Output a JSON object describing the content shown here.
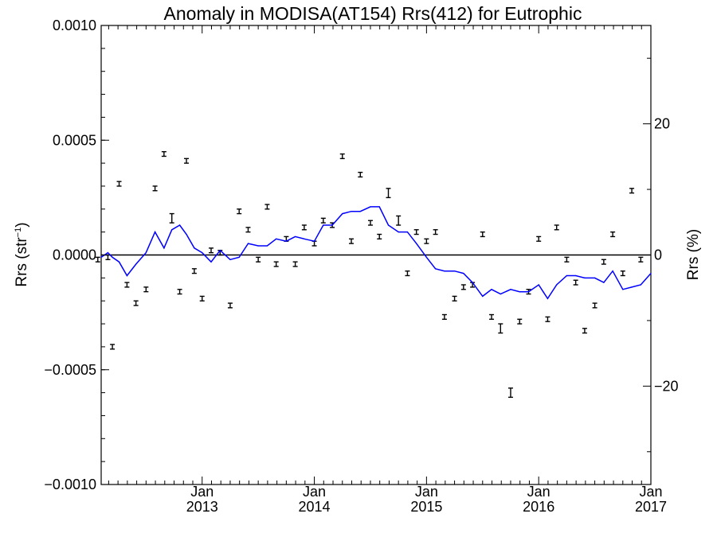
{
  "chart_data": {
    "type": "line",
    "title": "Anomaly in MODISA(AT154) Rrs(412) for Eutrophic",
    "ylabel_left": "Rrs (str",
    "ylabel_left_sup": "−1",
    "ylabel_left_close": ")",
    "ylabel_right": "Rrs (%)",
    "xlim": [
      2012.1,
      2017.0
    ],
    "ylim_left": [
      -0.001,
      0.001
    ],
    "ylim_right": [
      -35,
      35
    ],
    "y_ticks_left": [
      {
        "value": 0.001,
        "label": "0.0010"
      },
      {
        "value": 0.0005,
        "label": "0.0005"
      },
      {
        "value": 0.0,
        "label": "0.0000"
      },
      {
        "value": -0.0005,
        "label": "−0.0005"
      },
      {
        "value": -0.001,
        "label": "−0.0010"
      }
    ],
    "y_ticks_right": [
      {
        "value": 20,
        "label": "20"
      },
      {
        "value": 0,
        "label": "0"
      },
      {
        "value": -20,
        "label": "−20"
      }
    ],
    "x_ticks": [
      {
        "value": 2013.0,
        "month": "Jan",
        "year": "2013"
      },
      {
        "value": 2014.0,
        "month": "Jan",
        "year": "2014"
      },
      {
        "value": 2015.0,
        "month": "Jan",
        "year": "2015"
      },
      {
        "value": 2016.0,
        "month": "Jan",
        "year": "2016"
      },
      {
        "value": 2017.0,
        "month": "Jan",
        "year": "2017"
      }
    ],
    "zero_line": true,
    "grid": false,
    "series": [
      {
        "kind": "line",
        "color": "#0000ff",
        "x": [
          2012.1,
          2012.16,
          2012.2,
          2012.26,
          2012.33,
          2012.41,
          2012.5,
          2012.58,
          2012.66,
          2012.73,
          2012.8,
          2012.86,
          2012.93,
          2013.0,
          2013.08,
          2013.16,
          2013.25,
          2013.33,
          2013.41,
          2013.5,
          2013.58,
          2013.66,
          2013.75,
          2013.83,
          2013.91,
          2014.0,
          2014.08,
          2014.16,
          2014.25,
          2014.33,
          2014.41,
          2014.5,
          2014.58,
          2014.66,
          2014.75,
          2014.83,
          2014.91,
          2015.0,
          2015.08,
          2015.16,
          2015.25,
          2015.33,
          2015.41,
          2015.5,
          2015.58,
          2015.66,
          2015.75,
          2015.83,
          2015.91,
          2016.0,
          2016.04,
          2016.08,
          2016.16,
          2016.25,
          2016.33,
          2016.41,
          2016.5,
          2016.58,
          2016.66,
          2016.75,
          2016.83,
          2016.91,
          2017.0
        ],
        "values": [
          -1e-05,
          1e-05,
          -1e-05,
          -3e-05,
          -9e-05,
          -4e-05,
          1e-05,
          0.0001,
          3e-05,
          0.00011,
          0.00013,
          9e-05,
          3e-05,
          1e-05,
          -3e-05,
          2e-05,
          -2e-05,
          -1e-05,
          5e-05,
          4e-05,
          4e-05,
          7e-05,
          6e-05,
          8e-05,
          7e-05,
          6e-05,
          0.00013,
          0.00013,
          0.00018,
          0.00019,
          0.00019,
          0.00021,
          0.00021,
          0.00013,
          0.0001,
          0.0001,
          5e-05,
          -1e-05,
          -6e-05,
          -7e-05,
          -7e-05,
          -8e-05,
          -0.00012,
          -0.00018,
          -0.00015,
          -0.00017,
          -0.00015,
          -0.00016,
          -0.00016,
          -0.00013,
          -0.00016,
          -0.00019,
          -0.00013,
          -9e-05,
          -9e-05,
          -0.0001,
          -0.0001,
          -0.00012,
          -7e-05,
          -0.00015,
          -0.00014,
          -0.00013,
          -8e-05
        ]
      },
      {
        "kind": "errorbar",
        "color": "#000000",
        "x": [
          2012.07,
          2012.16,
          2012.2,
          2012.26,
          2012.33,
          2012.41,
          2012.5,
          2012.58,
          2012.66,
          2012.73,
          2012.8,
          2012.86,
          2012.93,
          2013.0,
          2013.08,
          2013.16,
          2013.25,
          2013.33,
          2013.41,
          2013.5,
          2013.58,
          2013.66,
          2013.75,
          2013.83,
          2013.91,
          2014.0,
          2014.08,
          2014.16,
          2014.25,
          2014.33,
          2014.41,
          2014.5,
          2014.58,
          2014.66,
          2014.75,
          2014.83,
          2014.91,
          2015.0,
          2015.08,
          2015.16,
          2015.25,
          2015.33,
          2015.41,
          2015.5,
          2015.58,
          2015.66,
          2015.75,
          2015.83,
          2015.91,
          2016.0,
          2016.08,
          2016.16,
          2016.25,
          2016.33,
          2016.41,
          2016.5,
          2016.58,
          2016.66,
          2016.75,
          2016.83,
          2016.91
        ],
        "values": [
          -2e-05,
          -1e-05,
          -0.0004,
          0.00031,
          -0.00013,
          -0.00021,
          -0.00015,
          0.00029,
          0.00044,
          0.00016,
          -0.00016,
          0.00041,
          -7e-05,
          -0.00019,
          2e-05,
          1e-05,
          -0.00022,
          0.00019,
          0.00011,
          -2e-05,
          0.00021,
          -4e-05,
          7e-05,
          -4e-05,
          0.00012,
          5e-05,
          0.00015,
          0.00013,
          0.00043,
          6e-05,
          0.00035,
          0.00014,
          8e-05,
          0.00027,
          0.00015,
          -8e-05,
          0.0001,
          6e-05,
          0.0001,
          -0.00027,
          -0.00019,
          -0.00014,
          -0.00013,
          9e-05,
          -0.00027,
          -0.00032,
          -0.0006,
          -0.00029,
          -0.00016,
          7e-05,
          -0.00028,
          0.00012,
          -2e-05,
          -0.00012,
          -0.00033,
          -0.00022,
          -3e-05,
          9e-05,
          -8e-05,
          0.00028,
          -2e-05
        ],
        "error": [
          1e-05,
          1e-05,
          1e-05,
          1e-05,
          1e-05,
          1e-05,
          1e-05,
          1e-05,
          1e-05,
          2e-05,
          1e-05,
          1e-05,
          1e-05,
          1e-05,
          1e-05,
          1e-05,
          1e-05,
          1e-05,
          1e-05,
          1e-05,
          1e-05,
          1e-05,
          1e-05,
          1e-05,
          1e-05,
          1e-05,
          1e-05,
          1e-05,
          1e-05,
          1e-05,
          1e-05,
          1e-05,
          1e-05,
          2e-05,
          2e-05,
          1e-05,
          1e-05,
          1e-05,
          1e-05,
          1e-05,
          1e-05,
          1e-05,
          1e-05,
          1e-05,
          1e-05,
          2e-05,
          2e-05,
          1e-05,
          1e-05,
          1e-05,
          1e-05,
          1e-05,
          1e-05,
          1e-05,
          1e-05,
          1e-05,
          1e-05,
          1e-05,
          1e-05,
          1e-05,
          1e-05
        ]
      }
    ]
  }
}
